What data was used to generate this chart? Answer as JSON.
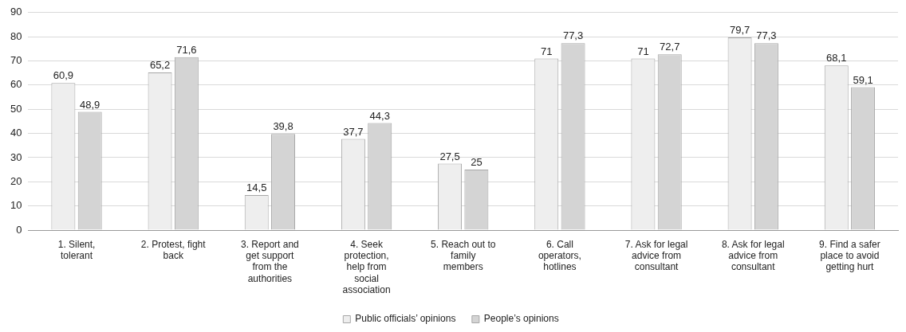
{
  "chart_data": {
    "type": "bar",
    "categories": [
      "1. Silent, tolerant",
      "2. Protest, fight back",
      "3. Report and get support from the authorities",
      "4. Seek protection, help from social association",
      "5. Reach out to family members",
      "6. Call operators, hotlines",
      "7. Ask for legal advice from consultant",
      "8. Ask for legal advice from consultant",
      "9. Find a safer place to avoid getting hurt"
    ],
    "series": [
      {
        "name": "Public officials’ opinions",
        "color": "#eeeeee",
        "values": [
          60.9,
          65.2,
          14.5,
          37.7,
          27.5,
          71,
          71,
          79.7,
          68.1
        ],
        "value_labels": [
          "60,9",
          "65,2",
          "14,5",
          "37,7",
          "27,5",
          "71",
          "71",
          "79,7",
          "68,1"
        ]
      },
      {
        "name": "People’s opinions",
        "color": "#d4d4d4",
        "values": [
          48.9,
          71.6,
          39.8,
          44.3,
          25,
          77.3,
          72.7,
          77.3,
          59.1
        ],
        "value_labels": [
          "48,9",
          "71,6",
          "39,8",
          "44,3",
          "25",
          "77,3",
          "72,7",
          "77,3",
          "59,1"
        ]
      }
    ],
    "ylim": [
      0,
      90
    ],
    "yticks": [
      0,
      10,
      20,
      30,
      40,
      50,
      60,
      70,
      80,
      90
    ],
    "grid": "y",
    "legend": "bottom"
  }
}
